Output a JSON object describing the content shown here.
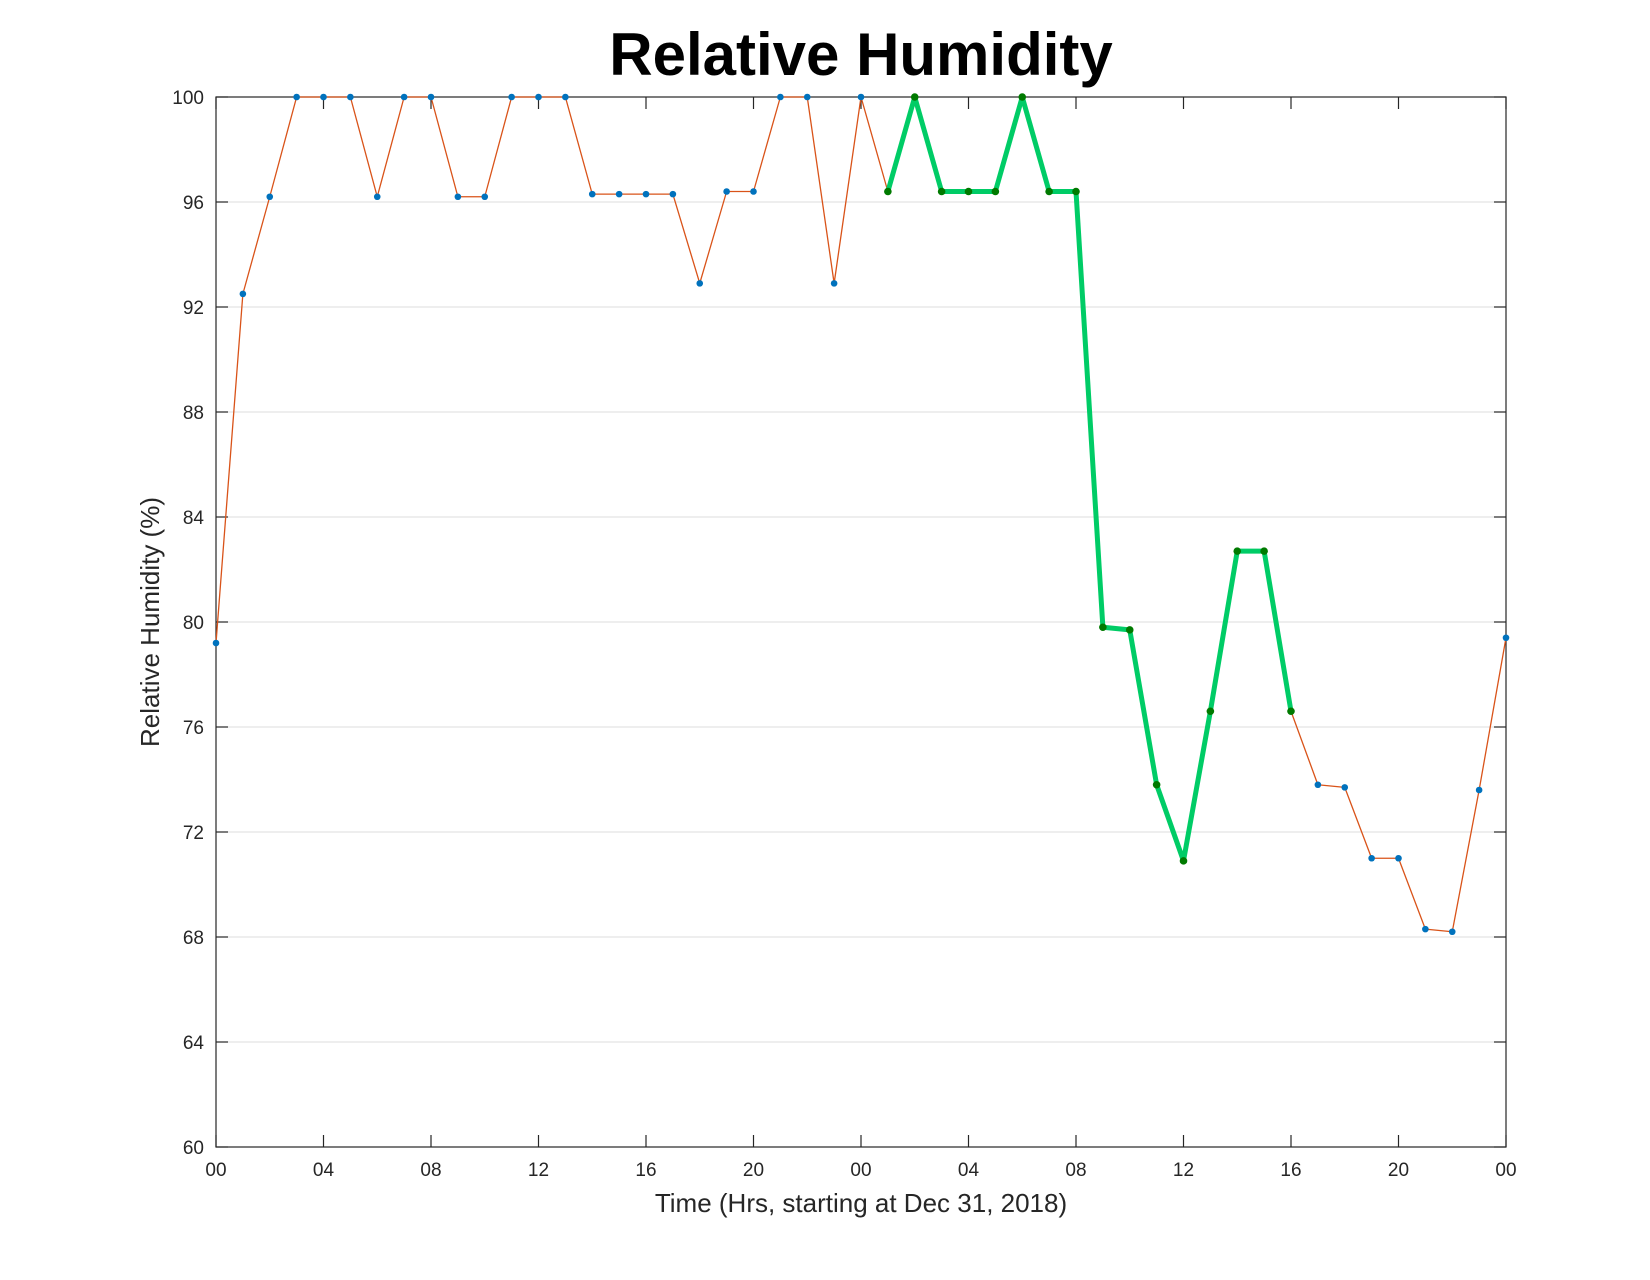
{
  "chart_data": {
    "type": "line",
    "title": "Relative Humidity",
    "xlabel": "Time (Hrs, starting at Dec 31, 2018)",
    "ylabel": "Relative Humidity (%)",
    "x_unit": "hours",
    "xlim": [
      0,
      48
    ],
    "ylim": [
      60,
      100
    ],
    "yticks": [
      60,
      64,
      68,
      72,
      76,
      80,
      84,
      88,
      92,
      96,
      100
    ],
    "xticks": [
      {
        "hour": 0,
        "label": "00"
      },
      {
        "hour": 4,
        "label": "04"
      },
      {
        "hour": 8,
        "label": "08"
      },
      {
        "hour": 12,
        "label": "12"
      },
      {
        "hour": 16,
        "label": "16"
      },
      {
        "hour": 20,
        "label": "20"
      },
      {
        "hour": 24,
        "label": "00"
      },
      {
        "hour": 28,
        "label": "04"
      },
      {
        "hour": 32,
        "label": "08"
      },
      {
        "hour": 36,
        "label": "12"
      },
      {
        "hour": 40,
        "label": "16"
      },
      {
        "hour": 44,
        "label": "20"
      },
      {
        "hour": 48,
        "label": "00"
      }
    ],
    "grid": "horizontal",
    "series": [
      {
        "color": "#d95319",
        "marker_color": "#0072bd",
        "x": [
          0,
          1,
          2,
          3,
          4,
          5,
          6,
          7,
          8,
          9,
          10,
          11,
          12,
          13,
          14,
          15,
          16,
          17,
          18,
          19,
          20,
          21,
          22,
          23,
          24,
          25,
          26,
          27,
          28,
          29,
          30,
          31,
          32,
          33,
          34,
          35,
          36,
          37,
          38,
          39,
          40,
          41,
          42,
          43,
          44,
          45,
          46,
          47,
          48
        ],
        "values": [
          79.2,
          92.5,
          96.2,
          100,
          100,
          100,
          96.2,
          100,
          100,
          96.2,
          96.2,
          100,
          100,
          100,
          96.3,
          96.3,
          96.3,
          96.3,
          92.9,
          96.4,
          96.4,
          100,
          100,
          92.9,
          100,
          96.4,
          100,
          96.4,
          96.4,
          96.4,
          100,
          96.4,
          96.4,
          79.8,
          79.7,
          73.8,
          70.9,
          76.6,
          82.7,
          82.7,
          76.6,
          73.8,
          73.7,
          71.0,
          71.0,
          68.3,
          68.2,
          73.6,
          79.4
        ]
      },
      {
        "color": "#00cc66",
        "marker_color": "#007a00",
        "x": [
          25,
          26,
          27,
          28,
          29,
          30,
          31,
          32,
          33,
          34,
          35,
          36,
          37,
          38,
          39,
          40
        ],
        "values": [
          96.4,
          100,
          96.4,
          96.4,
          96.4,
          100,
          96.4,
          96.4,
          79.8,
          79.7,
          73.8,
          70.9,
          76.6,
          82.7,
          82.7,
          76.6
        ]
      }
    ]
  }
}
